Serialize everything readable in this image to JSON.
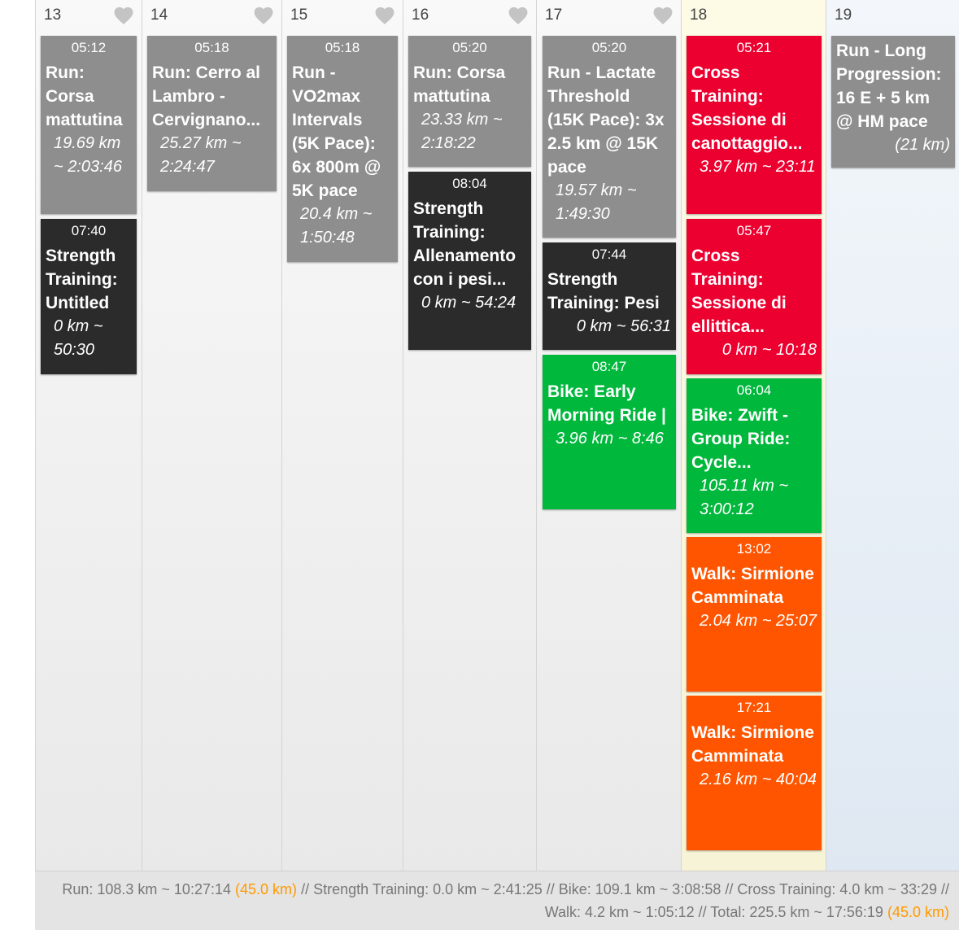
{
  "colors": {
    "gray": "#8e8e8e",
    "black": "#2b2b2b",
    "red": "#ec0030",
    "green": "#00b83c",
    "orange": "#ff5500",
    "highlight": "#ff9900"
  },
  "days": [
    {
      "num": "13",
      "icon": "heart-icon",
      "workouts": [
        {
          "time": "05:12",
          "title": "Run: Corsa mattutina",
          "meta": "19.69 km ~ 2:03:46"
        },
        {
          "time": "07:40",
          "title": "Strength Training: Untitled",
          "meta": "0 km ~ 50:30"
        }
      ]
    },
    {
      "num": "14",
      "icon": "heart-icon",
      "workouts": [
        {
          "time": "05:18",
          "title": "Run: Cerro al Lambro - Cervignano...",
          "meta": "25.27 km ~ 2:24:47"
        }
      ]
    },
    {
      "num": "15",
      "icon": "heart-icon",
      "workouts": [
        {
          "time": "05:18",
          "title": "Run - VO2max Intervals (5K Pace): 6x 800m @ 5K pace",
          "meta": "20.4 km ~ 1:50:48"
        }
      ]
    },
    {
      "num": "16",
      "icon": "heart-icon",
      "workouts": [
        {
          "time": "05:20",
          "title": "Run: Corsa mattutina",
          "meta": "23.33 km ~ 2:18:22"
        },
        {
          "time": "08:04",
          "title": "Strength Training: Allenamento con i pesi...",
          "meta": "0 km ~ 54:24"
        }
      ]
    },
    {
      "num": "17",
      "icon": "heart-icon",
      "workouts": [
        {
          "time": "05:20",
          "title": "Run - Lactate Threshold (15K Pace): 3x 2.5 km @ 15K pace",
          "meta": "19.57 km ~ 1:49:30"
        },
        {
          "time": "07:44",
          "title": "Strength Training: Pesi",
          "meta": "0 km ~ 56:31"
        },
        {
          "time": "08:47",
          "title": "Bike: Early Morning Ride |",
          "meta": "3.96 km ~ 8:46"
        }
      ]
    },
    {
      "num": "18",
      "workouts": [
        {
          "time": "05:21",
          "title": "Cross Training: Sessione di canottaggio...",
          "meta": "3.97 km ~ 23:11"
        },
        {
          "time": "05:47",
          "title": "Cross Training: Sessione di ellittica...",
          "meta": "0 km ~ 10:18"
        },
        {
          "time": "06:04",
          "title": "Bike: Zwift - Group Ride: Cycle...",
          "meta": "105.11 km ~ 3:00:12"
        },
        {
          "time": "13:02",
          "title": "Walk: Sirmione Camminata",
          "meta": "2.04 km ~ 25:07"
        },
        {
          "time": "17:21",
          "title": "Walk: Sirmione Camminata",
          "meta": "2.16 km ~ 40:04"
        }
      ]
    },
    {
      "num": "19",
      "workouts": [
        {
          "title": "Run - Long Progression: 16 E + 5 km @ HM pace",
          "meta": "(21 km)"
        }
      ]
    }
  ],
  "summary": {
    "run": "Run: 108.3 km ~ 10:27:14",
    "run_planned": "(45.0 km)",
    "rest": "// Strength Training: 0.0 km ~ 2:41:25 // Bike: 109.1 km ~ 3:08:58 // Cross Training: 4.0 km ~ 33:29 // Walk: 4.2 km ~ 1:05:12 // Total: 225.5 km ~ 17:56:19",
    "total_planned": "(45.0 km)"
  }
}
